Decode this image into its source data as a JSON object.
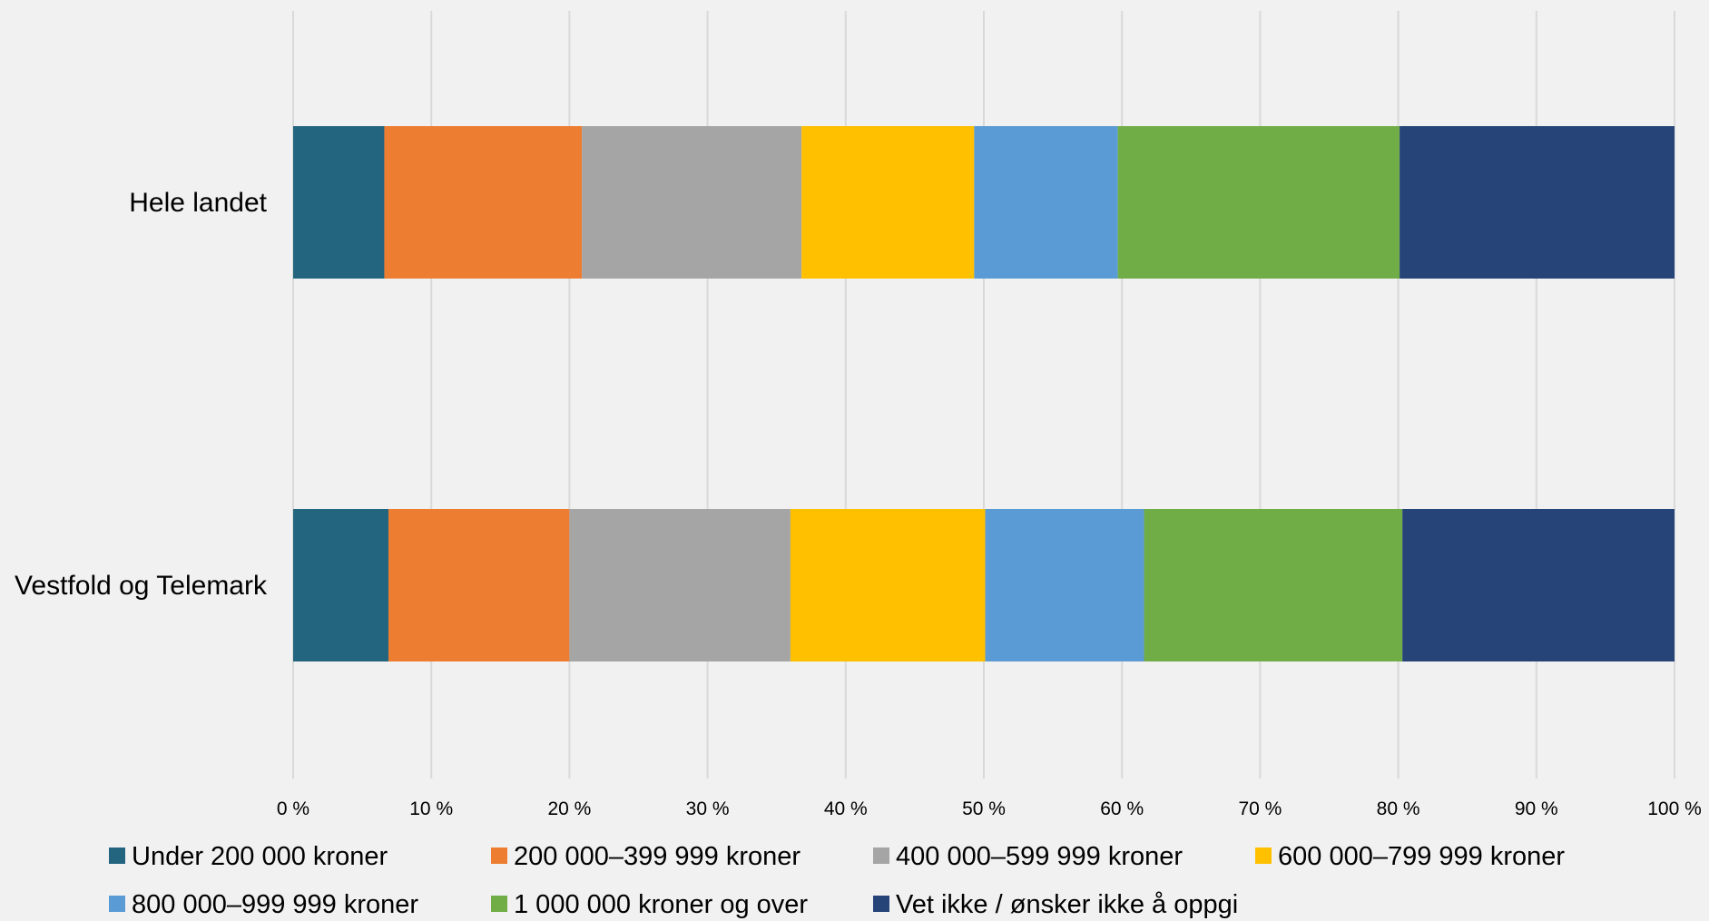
{
  "chart_data": {
    "type": "bar",
    "orientation": "horizontal",
    "stacked": true,
    "percent_stacked": true,
    "categories": [
      "Hele landet",
      "Vestfold og Telemark"
    ],
    "series": [
      {
        "name": "Under 200 000 kroner",
        "color": "#23647e",
        "values": [
          6.6,
          6.9
        ]
      },
      {
        "name": "200 000–399 999 kroner",
        "color": "#ed7d31",
        "values": [
          14.3,
          13.1
        ]
      },
      {
        "name": "400 000–599 999 kroner",
        "color": "#a5a5a5",
        "values": [
          15.9,
          16.0
        ]
      },
      {
        "name": "600 000–799 999 kroner",
        "color": "#ffc000",
        "values": [
          12.5,
          14.1
        ]
      },
      {
        "name": "800 000–999 999 kroner",
        "color": "#5b9bd5",
        "values": [
          10.4,
          11.5
        ]
      },
      {
        "name": "1 000 000 kroner og over",
        "color": "#70ad47",
        "values": [
          20.4,
          18.7
        ]
      },
      {
        "name": "Vet ikke / ønsker ikke å oppgi",
        "color": "#264478",
        "values": [
          19.9,
          19.7
        ]
      }
    ],
    "xlim": [
      0,
      100
    ],
    "xticks": [
      0,
      10,
      20,
      30,
      40,
      50,
      60,
      70,
      80,
      90,
      100
    ],
    "xtick_labels": [
      "0 %",
      "10 %",
      "20 %",
      "30 %",
      "40 %",
      "50 %",
      "60 %",
      "70 %",
      "80 %",
      "90 %",
      "100 %"
    ],
    "grid": "vertical",
    "legend_position": "bottom",
    "title": "",
    "xlabel": "",
    "ylabel": ""
  }
}
